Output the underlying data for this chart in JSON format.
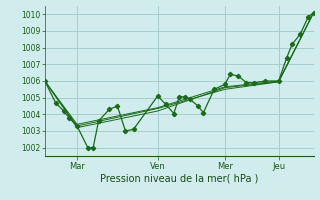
{
  "xlabel": "Pression niveau de la mer( hPa )",
  "ylim": [
    1001.5,
    1010.5
  ],
  "yticks": [
    1002,
    1003,
    1004,
    1005,
    1006,
    1007,
    1008,
    1009,
    1010
  ],
  "bg_color": "#d0ecec",
  "grid_color": "#a8cccc",
  "line_color": "#1a6a1a",
  "tick_label_color": "#1a5a1a",
  "xlabel_color": "#1a4a1a",
  "xtick_labels": [
    "Mar",
    "Ven",
    "Mer",
    "Jeu"
  ],
  "xtick_positions": [
    0.12,
    0.42,
    0.67,
    0.87
  ],
  "series1": [
    [
      0.0,
      1006.0
    ],
    [
      0.04,
      1004.7
    ],
    [
      0.07,
      1004.2
    ],
    [
      0.09,
      1003.8
    ],
    [
      0.12,
      1003.3
    ],
    [
      0.16,
      1002.0
    ],
    [
      0.18,
      1002.0
    ],
    [
      0.2,
      1003.6
    ],
    [
      0.24,
      1004.3
    ],
    [
      0.27,
      1004.5
    ],
    [
      0.3,
      1003.0
    ],
    [
      0.33,
      1003.1
    ],
    [
      0.42,
      1005.1
    ],
    [
      0.45,
      1004.6
    ],
    [
      0.48,
      1004.05
    ],
    [
      0.5,
      1005.05
    ],
    [
      0.52,
      1005.05
    ],
    [
      0.54,
      1004.9
    ],
    [
      0.57,
      1004.5
    ],
    [
      0.59,
      1004.1
    ],
    [
      0.63,
      1005.5
    ],
    [
      0.67,
      1005.8
    ],
    [
      0.69,
      1006.4
    ],
    [
      0.72,
      1006.3
    ],
    [
      0.75,
      1005.9
    ],
    [
      0.78,
      1005.9
    ],
    [
      0.82,
      1006.0
    ],
    [
      0.87,
      1006.0
    ],
    [
      0.9,
      1007.4
    ],
    [
      0.92,
      1008.2
    ],
    [
      0.95,
      1008.8
    ],
    [
      0.98,
      1009.85
    ],
    [
      1.0,
      1010.1
    ]
  ],
  "series2": [
    [
      0.0,
      1006.0
    ],
    [
      0.12,
      1003.3
    ],
    [
      0.42,
      1004.35
    ],
    [
      0.67,
      1005.5
    ],
    [
      0.87,
      1005.95
    ],
    [
      1.0,
      1010.1
    ]
  ],
  "series3": [
    [
      0.0,
      1006.0
    ],
    [
      0.12,
      1003.2
    ],
    [
      0.42,
      1004.2
    ],
    [
      0.67,
      1005.6
    ],
    [
      0.87,
      1005.95
    ],
    [
      1.0,
      1010.1
    ]
  ],
  "series4": [
    [
      0.0,
      1006.0
    ],
    [
      0.12,
      1003.4
    ],
    [
      0.42,
      1004.4
    ],
    [
      0.67,
      1005.65
    ],
    [
      0.87,
      1006.0
    ],
    [
      1.0,
      1010.1
    ]
  ]
}
